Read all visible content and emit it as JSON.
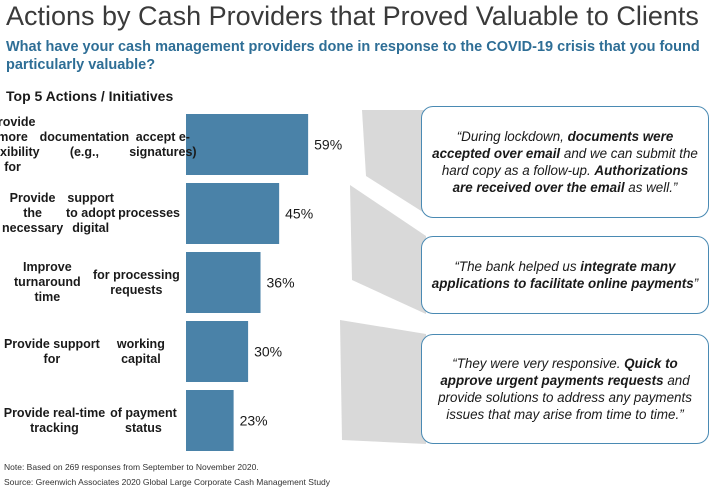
{
  "title": "Actions by Cash Providers that Proved Valuable to Clients",
  "subtitle": "What have your cash management providers done in response to the COVID-19 crisis that you found particularly valuable?",
  "section_label": "Top 5 Actions / Initiatives",
  "colors": {
    "bar": "#4a82a8",
    "callout_border": "#4a8ab3",
    "connector": "#d9d9d9",
    "subtitle": "#2e6e96"
  },
  "chart_data": {
    "type": "bar",
    "orientation": "horizontal",
    "categories": [
      [
        "Provide more flexibility for",
        "documentation (e.g.,",
        "accept e-signatures)"
      ],
      [
        "Provide the necessary",
        "support to adopt digital",
        "processes"
      ],
      [
        "Improve turnaround time",
        "for processing requests"
      ],
      [
        "Provide support for",
        "working capital"
      ],
      [
        "Provide real-time tracking",
        "of payment status"
      ]
    ],
    "values": [
      59,
      45,
      36,
      30,
      23
    ],
    "value_labels": [
      "59%",
      "45%",
      "36%",
      "30%",
      "23%"
    ],
    "unit": "%",
    "xlim": [
      0,
      100
    ]
  },
  "quotes": [
    [
      {
        "t": "“During lockdown, ",
        "b": false
      },
      {
        "t": "documents were accepted over email",
        "b": true
      },
      {
        "t": " and we can submit the hard copy as a follow-up. ",
        "b": false
      },
      {
        "t": "Authorizations are received over the email",
        "b": true
      },
      {
        "t": " as well.”",
        "b": false
      }
    ],
    [
      {
        "t": "“The bank helped us ",
        "b": false
      },
      {
        "t": "integrate many applications to facilitate online payments",
        "b": true
      },
      {
        "t": "”",
        "b": false
      }
    ],
    [
      {
        "t": "“They were very responsive. ",
        "b": false
      },
      {
        "t": "Quick to approve urgent payments requests",
        "b": true
      },
      {
        "t": " and provide solutions to address any payments issues that may arise from time to time.”",
        "b": false
      }
    ]
  ],
  "note": "Note: Based on 269 responses from September to November 2020.",
  "source": "Source: Greenwich Associates 2020 Global Large Corporate Cash Management Study"
}
